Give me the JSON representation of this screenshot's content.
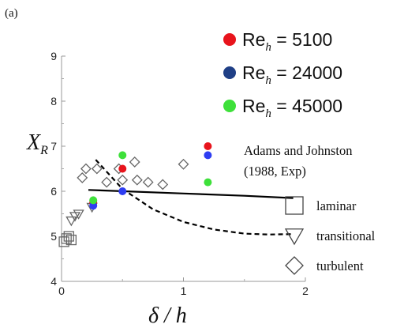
{
  "panel_label": "(a)",
  "chart_data": {
    "type": "scatter",
    "xlabel": "δ / h",
    "ylabel": "X_R",
    "ylabel_main": "X",
    "ylabel_sub": "R",
    "xlim": [
      0,
      2
    ],
    "ylim": [
      4,
      9
    ],
    "xticks": [
      0,
      1,
      2
    ],
    "yticks": [
      4,
      5,
      6,
      7,
      8,
      9
    ],
    "xtick_labels": [
      "0",
      "1",
      "2"
    ],
    "ytick_labels": [
      "4",
      "5",
      "6",
      "7",
      "8",
      "9"
    ],
    "grid": false,
    "legend_position": "top-right",
    "series": [
      {
        "name": "Re_h = 5100",
        "label_main": "Re",
        "label_sub": "h",
        "label_value": " = 5100",
        "color": "#e8141c",
        "marker": "filled-circle",
        "points": [
          {
            "x": 0.26,
            "y": 5.75
          },
          {
            "x": 0.5,
            "y": 6.5
          },
          {
            "x": 1.2,
            "y": 7.0
          }
        ]
      },
      {
        "name": "Re_h = 24000",
        "label_main": "Re",
        "label_sub": "h",
        "label_value": " = 24000",
        "color": "#1f3f86",
        "legend_color": "#1f3f86",
        "plot_color": "#2e3df2",
        "marker": "filled-circle",
        "points": [
          {
            "x": 0.26,
            "y": 5.68
          },
          {
            "x": 0.5,
            "y": 6.0
          },
          {
            "x": 1.2,
            "y": 6.8
          }
        ]
      },
      {
        "name": "Re_h = 45000",
        "label_main": "Re",
        "label_sub": "h",
        "label_value": " = 45000",
        "color": "#3ee03a",
        "marker": "filled-circle",
        "points": [
          {
            "x": 0.26,
            "y": 5.8
          },
          {
            "x": 0.5,
            "y": 6.8
          },
          {
            "x": 1.2,
            "y": 6.2
          }
        ]
      }
    ],
    "reference": {
      "title_line1": "Adams and Johnston",
      "title_line2": "(1988, Exp)",
      "groups": [
        {
          "name": "laminar",
          "marker": "square",
          "points": [
            {
              "x": 0.02,
              "y": 4.88
            },
            {
              "x": 0.04,
              "y": 4.95
            },
            {
              "x": 0.06,
              "y": 5.0
            },
            {
              "x": 0.08,
              "y": 4.92
            }
          ]
        },
        {
          "name": "transitional",
          "marker": "triangle-down",
          "points": [
            {
              "x": 0.08,
              "y": 5.35
            },
            {
              "x": 0.11,
              "y": 5.45
            },
            {
              "x": 0.14,
              "y": 5.5
            },
            {
              "x": 0.25,
              "y": 5.65
            }
          ]
        },
        {
          "name": "turbulent",
          "marker": "diamond",
          "points": [
            {
              "x": 0.17,
              "y": 6.3
            },
            {
              "x": 0.2,
              "y": 6.5
            },
            {
              "x": 0.29,
              "y": 6.5
            },
            {
              "x": 0.37,
              "y": 6.2
            },
            {
              "x": 0.47,
              "y": 6.5
            },
            {
              "x": 0.5,
              "y": 6.25
            },
            {
              "x": 0.6,
              "y": 6.65
            },
            {
              "x": 0.62,
              "y": 6.25
            },
            {
              "x": 0.71,
              "y": 6.2
            },
            {
              "x": 0.83,
              "y": 6.15
            },
            {
              "x": 1.0,
              "y": 6.6
            }
          ]
        }
      ]
    },
    "curves": [
      {
        "name": "solid",
        "style": "solid",
        "points": [
          {
            "x": 0.22,
            "y": 6.03
          },
          {
            "x": 1.0,
            "y": 5.95
          },
          {
            "x": 1.5,
            "y": 5.9
          },
          {
            "x": 1.9,
            "y": 5.85
          }
        ]
      },
      {
        "name": "dashed",
        "style": "dashed",
        "points": [
          {
            "x": 0.28,
            "y": 6.7
          },
          {
            "x": 0.5,
            "y": 6.05
          },
          {
            "x": 0.75,
            "y": 5.6
          },
          {
            "x": 1.0,
            "y": 5.32
          },
          {
            "x": 1.25,
            "y": 5.15
          },
          {
            "x": 1.5,
            "y": 5.06
          },
          {
            "x": 1.7,
            "y": 5.04
          },
          {
            "x": 1.9,
            "y": 5.05
          }
        ]
      }
    ]
  }
}
